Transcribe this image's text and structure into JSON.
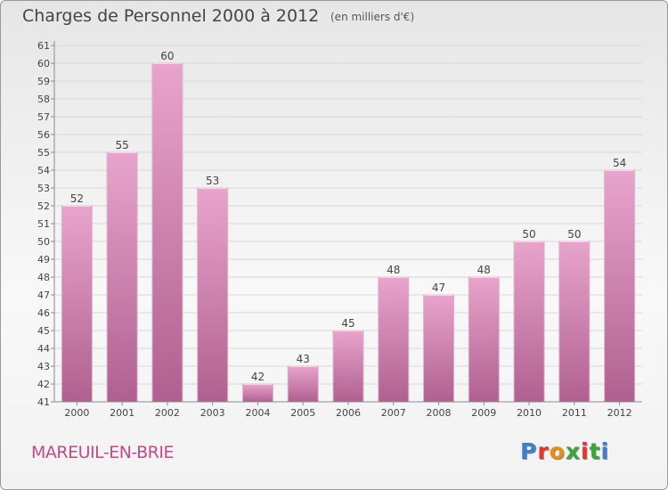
{
  "header": {
    "title": "Charges de Personnel 2000 à 2012",
    "subtitle": "(en milliers d'€)"
  },
  "footer": {
    "commune": "MAREUIL-EN-BRIE",
    "logo_text": "Proxiti"
  },
  "logo_colors": [
    "#3e7fd0",
    "#e8332d",
    "#ef8a12",
    "#3aa63b",
    "#e8332d",
    "#3aa63b",
    "#3e7fd0"
  ],
  "colors": {
    "bar_top": "#e8a4cc",
    "bar_bottom": "#b06090",
    "axis": "#8a8a8a",
    "grid": "#d8d8d8"
  },
  "chart_data": {
    "type": "bar",
    "title": "Charges de Personnel 2000 à 2012",
    "subtitle": "(en milliers d'€)",
    "categories": [
      "2000",
      "2001",
      "2002",
      "2003",
      "2004",
      "2005",
      "2006",
      "2007",
      "2008",
      "2009",
      "2010",
      "2011",
      "2012"
    ],
    "values": [
      52,
      55,
      60,
      53,
      42,
      43,
      45,
      48,
      47,
      48,
      50,
      50,
      54
    ],
    "ylim": [
      41,
      61
    ],
    "yticks": [
      41,
      42,
      43,
      44,
      45,
      46,
      47,
      48,
      49,
      50,
      51,
      52,
      53,
      54,
      55,
      56,
      57,
      58,
      59,
      60,
      61
    ],
    "xlabel": "",
    "ylabel": "",
    "grid": true
  }
}
